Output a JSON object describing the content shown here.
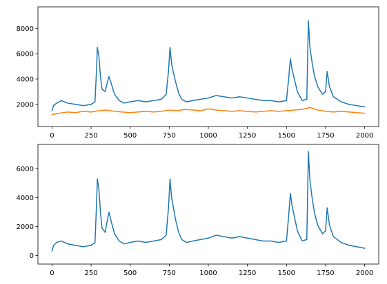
{
  "chart_data": [
    {
      "type": "line",
      "title": "",
      "xlabel": "",
      "ylabel": "",
      "xlim": [
        -90,
        2090
      ],
      "ylim": [
        250,
        9700
      ],
      "grid": false,
      "xticks": [
        0,
        250,
        500,
        750,
        1000,
        1250,
        1500,
        1750,
        2000
      ],
      "xtick_labels": [
        "0",
        "250",
        "500",
        "750",
        "1000",
        "1250",
        "1500",
        "1750",
        "2000"
      ],
      "yticks": [
        2000,
        4000,
        6000,
        8000
      ],
      "ytick_labels": [
        "2000",
        "4000",
        "6000",
        "8000"
      ],
      "series": [
        {
          "color": "#1f77b4",
          "x": [
            0,
            10,
            30,
            60,
            100,
            150,
            200,
            250,
            275,
            285,
            290,
            300,
            310,
            320,
            340,
            355,
            365,
            380,
            400,
            430,
            460,
            500,
            550,
            600,
            650,
            700,
            730,
            745,
            755,
            765,
            775,
            790,
            810,
            830,
            860,
            900,
            950,
            1000,
            1050,
            1100,
            1150,
            1200,
            1250,
            1300,
            1350,
            1400,
            1450,
            1500,
            1515,
            1525,
            1535,
            1550,
            1570,
            1600,
            1630,
            1640,
            1650,
            1665,
            1680,
            1700,
            1730,
            1750,
            1760,
            1775,
            1800,
            1850,
            1900,
            1950,
            2000
          ],
          "y": [
            1500,
            1900,
            2100,
            2300,
            2100,
            2000,
            1900,
            2000,
            2200,
            4800,
            6500,
            5800,
            4200,
            3200,
            3000,
            3800,
            4200,
            3600,
            2800,
            2300,
            2100,
            2200,
            2300,
            2200,
            2300,
            2400,
            2800,
            4600,
            6500,
            5200,
            4600,
            3800,
            2900,
            2400,
            2200,
            2300,
            2400,
            2500,
            2700,
            2600,
            2500,
            2600,
            2500,
            2400,
            2300,
            2300,
            2200,
            2300,
            4200,
            5600,
            4800,
            4000,
            3000,
            2300,
            2400,
            8600,
            6500,
            5200,
            4200,
            3400,
            2800,
            3000,
            4600,
            3400,
            2600,
            2200,
            2000,
            1900,
            1800
          ]
        },
        {
          "color": "#ff7f0e",
          "x": [
            0,
            50,
            100,
            150,
            200,
            250,
            300,
            350,
            400,
            450,
            500,
            550,
            600,
            650,
            700,
            750,
            800,
            850,
            900,
            950,
            1000,
            1050,
            1100,
            1150,
            1200,
            1250,
            1300,
            1350,
            1400,
            1450,
            1500,
            1550,
            1600,
            1650,
            1700,
            1750,
            1800,
            1850,
            1900,
            1950,
            2000
          ],
          "y": [
            1200,
            1300,
            1400,
            1350,
            1450,
            1400,
            1500,
            1550,
            1450,
            1400,
            1350,
            1400,
            1450,
            1400,
            1450,
            1550,
            1500,
            1600,
            1550,
            1500,
            1650,
            1550,
            1500,
            1450,
            1500,
            1450,
            1400,
            1450,
            1500,
            1450,
            1500,
            1550,
            1600,
            1750,
            1550,
            1450,
            1400,
            1450,
            1400,
            1350,
            1300
          ]
        }
      ]
    },
    {
      "type": "line",
      "title": "",
      "xlabel": "",
      "ylabel": "",
      "xlim": [
        -90,
        2090
      ],
      "ylim": [
        -600,
        7700
      ],
      "grid": false,
      "xticks": [
        0,
        250,
        500,
        750,
        1000,
        1250,
        1500,
        1750,
        2000
      ],
      "xtick_labels": [
        "0",
        "250",
        "500",
        "750",
        "1000",
        "1250",
        "1500",
        "1750",
        "2000"
      ],
      "yticks": [
        0,
        2000,
        4000,
        6000
      ],
      "ytick_labels": [
        "0",
        "2000",
        "4000",
        "6000"
      ],
      "series": [
        {
          "color": "#1f77b4",
          "x": [
            0,
            10,
            30,
            60,
            100,
            150,
            200,
            250,
            275,
            285,
            290,
            300,
            310,
            320,
            340,
            355,
            365,
            380,
            400,
            430,
            460,
            500,
            550,
            600,
            650,
            700,
            730,
            745,
            755,
            765,
            775,
            790,
            810,
            830,
            860,
            900,
            950,
            1000,
            1050,
            1100,
            1150,
            1200,
            1250,
            1300,
            1350,
            1400,
            1450,
            1500,
            1515,
            1525,
            1535,
            1550,
            1570,
            1600,
            1630,
            1640,
            1650,
            1665,
            1680,
            1700,
            1730,
            1750,
            1760,
            1775,
            1800,
            1850,
            1900,
            1950,
            2000
          ],
          "y": [
            300,
            700,
            900,
            1000,
            800,
            700,
            600,
            700,
            900,
            3600,
            5300,
            4600,
            3000,
            1900,
            1600,
            2500,
            3000,
            2300,
            1500,
            1000,
            800,
            900,
            1000,
            900,
            1000,
            1100,
            1400,
            3300,
            5300,
            4000,
            3400,
            2500,
            1600,
            1100,
            900,
            1000,
            1100,
            1200,
            1400,
            1300,
            1200,
            1300,
            1200,
            1100,
            1000,
            1000,
            900,
            1000,
            2900,
            4300,
            3500,
            2700,
            1700,
            1000,
            1100,
            7200,
            5200,
            3900,
            2900,
            2100,
            1500,
            1700,
            3300,
            2100,
            1300,
            900,
            700,
            600,
            500
          ]
        }
      ]
    }
  ]
}
